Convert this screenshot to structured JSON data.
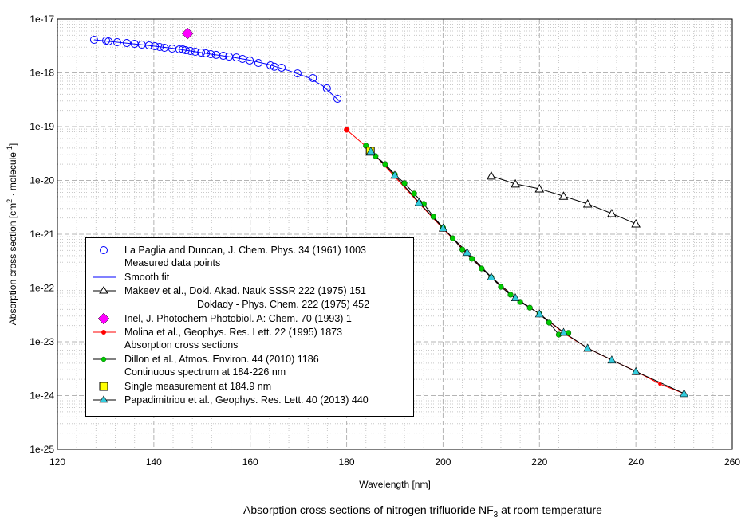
{
  "chart_data": {
    "type": "scatter",
    "title": "",
    "caption_main": "Absorption cross sections of nitrogen trifluoride NF",
    "caption_sub": "3",
    "caption_tail": " at room temperature",
    "xlabel": "Wavelength [nm]",
    "ylabel_main": "Absorption cross section [cm",
    "ylabel_sup1": "2",
    "ylabel_mid": " · molecule",
    "ylabel_sup2": "-1",
    "ylabel_end": "]",
    "xlim": [
      120,
      260
    ],
    "ylim": [
      1e-25,
      1e-17
    ],
    "yscale": "log",
    "grid": true,
    "x_ticks": [
      "120",
      "140",
      "160",
      "180",
      "200",
      "220",
      "240",
      "260"
    ],
    "y_ticks": [
      "1e-25",
      "1e-24",
      "1e-23",
      "1e-22",
      "1e-21",
      "1e-20",
      "1e-19",
      "1e-18",
      "1e-17"
    ],
    "legend_placement": "lower-left",
    "series": [
      {
        "name": "La Paglia and Duncan, J. Chem. Phys. 34 (1961) 1003",
        "name2": "Measured data points",
        "marker": "circle-open",
        "color": "#0000ff",
        "line": false,
        "x": [
          127.6,
          130.1,
          130.6,
          132.4,
          134.4,
          136.0,
          137.5,
          139.0,
          140.2,
          141.2,
          142.2,
          143.8,
          145.3,
          146.0,
          146.6,
          147.6,
          148.6,
          149.8,
          150.8,
          151.8,
          152.9,
          154.4,
          155.6,
          157.1,
          158.4,
          159.9,
          161.7,
          164.2,
          165.0,
          166.5,
          169.8,
          173.0,
          175.9,
          178.1
        ],
        "y": [
          4.12e-18,
          3.98e-18,
          3.85e-18,
          3.72e-18,
          3.59e-18,
          3.47e-18,
          3.35e-18,
          3.24e-18,
          3.14e-18,
          3.03e-18,
          2.93e-18,
          2.83e-18,
          2.74e-18,
          2.74e-18,
          2.64e-18,
          2.55e-18,
          2.47e-18,
          2.39e-18,
          2.31e-18,
          2.23e-18,
          2.16e-18,
          2.08e-18,
          2.01e-18,
          1.94e-18,
          1.82e-18,
          1.7e-18,
          1.53e-18,
          1.38e-18,
          1.3e-18,
          1.25e-18,
          9.8e-19,
          8e-19,
          5.15e-19,
          3.3e-19
        ]
      },
      {
        "name": "Smooth fit",
        "marker": "none",
        "color": "#0000ff",
        "line": true,
        "x": [
          127.6,
          132,
          136,
          140,
          144,
          148,
          152,
          156,
          160,
          164,
          168,
          172,
          175,
          178.5
        ],
        "y": [
          4.12e-18,
          3.75e-18,
          3.45e-18,
          3.15e-18,
          2.85e-18,
          2.52e-18,
          2.22e-18,
          1.98e-18,
          1.72e-18,
          1.42e-18,
          1.1e-18,
          8.2e-19,
          5.8e-19,
          3e-19
        ]
      },
      {
        "name": "Makeev et al., Dokl. Akad. Nauk SSSR 222 (1975) 151",
        "name2": "Doklady - Phys. Chem. 222 (1975) 452",
        "marker": "triangle-open",
        "color": "#000000",
        "line": true,
        "x": [
          210,
          215,
          220,
          225,
          230,
          235,
          240
        ],
        "y": [
          1.21e-20,
          8.6e-21,
          7e-21,
          5.1e-21,
          3.66e-21,
          2.43e-21,
          1.56e-21
        ]
      },
      {
        "name": "Inel, J. Photochem Photobiol. A: Chem. 70 (1993) 1",
        "marker": "diamond",
        "color": "#ff00ff",
        "line": false,
        "x": [
          147
        ],
        "y": [
          5.4e-18
        ]
      },
      {
        "name": "Molina et al., Geophys. Res. Lett. 22 (1995) 1873",
        "name2": "Absorption cross sections",
        "marker": "dot",
        "color": "#ff0000",
        "line": true,
        "x": [
          180,
          185,
          190,
          195,
          200,
          205,
          210,
          215,
          220,
          225,
          230,
          235,
          240,
          245,
          250
        ],
        "y": [
          8.73e-20,
          3.59e-20,
          1.17e-20,
          3.78e-21,
          1.27e-21,
          4.41e-22,
          1.58e-22,
          6.53e-23,
          3.3e-23,
          1.46e-23,
          7.61e-24,
          4.56e-24,
          2.83e-24,
          1.64e-24,
          1.09e-24
        ]
      },
      {
        "name": "Dillon et al., Atmos. Environ. 44 (2010) 1186",
        "name2": "Continuous spectrum at 184-226 nm",
        "marker": "circle-filled",
        "color": "#00cc00",
        "line": true,
        "x": [
          184,
          186,
          188,
          190,
          192,
          194,
          196,
          198,
          200,
          202,
          204,
          206,
          208,
          210,
          212,
          214,
          216,
          218,
          220,
          222,
          224,
          226
        ],
        "y": [
          4.41e-20,
          2.83e-20,
          2.01e-20,
          1.29e-20,
          8.87e-21,
          5.7e-21,
          3.66e-21,
          2.12e-21,
          1.32e-21,
          8.4e-22,
          5.2e-22,
          3.5e-22,
          2.3e-22,
          1.58e-22,
          1.05e-22,
          7.5e-23,
          5.5e-23,
          4.3e-23,
          3.3e-23,
          2.27e-23,
          1.36e-23,
          1.46e-23
        ]
      },
      {
        "name": "Single measurement at 184.9 nm",
        "marker": "square",
        "color": "#ffff00",
        "line": false,
        "x": [
          184.9
        ],
        "y": [
          3.5e-20
        ]
      },
      {
        "name": "Papadimitriou et al., Geophys. Res. Lett. 40 (2013) 440",
        "marker": "triangle-filled",
        "color": "#33ccdd",
        "line": true,
        "x": [
          185,
          190,
          195,
          200,
          205,
          210,
          215,
          220,
          225,
          230,
          235,
          240,
          250
        ],
        "y": [
          3.5e-20,
          1.25e-20,
          3.9e-21,
          1.3e-21,
          4.6e-22,
          1.6e-22,
          6.6e-23,
          3.3e-23,
          1.5e-23,
          7.6e-24,
          4.6e-24,
          2.8e-24,
          1.09e-24
        ]
      }
    ]
  }
}
